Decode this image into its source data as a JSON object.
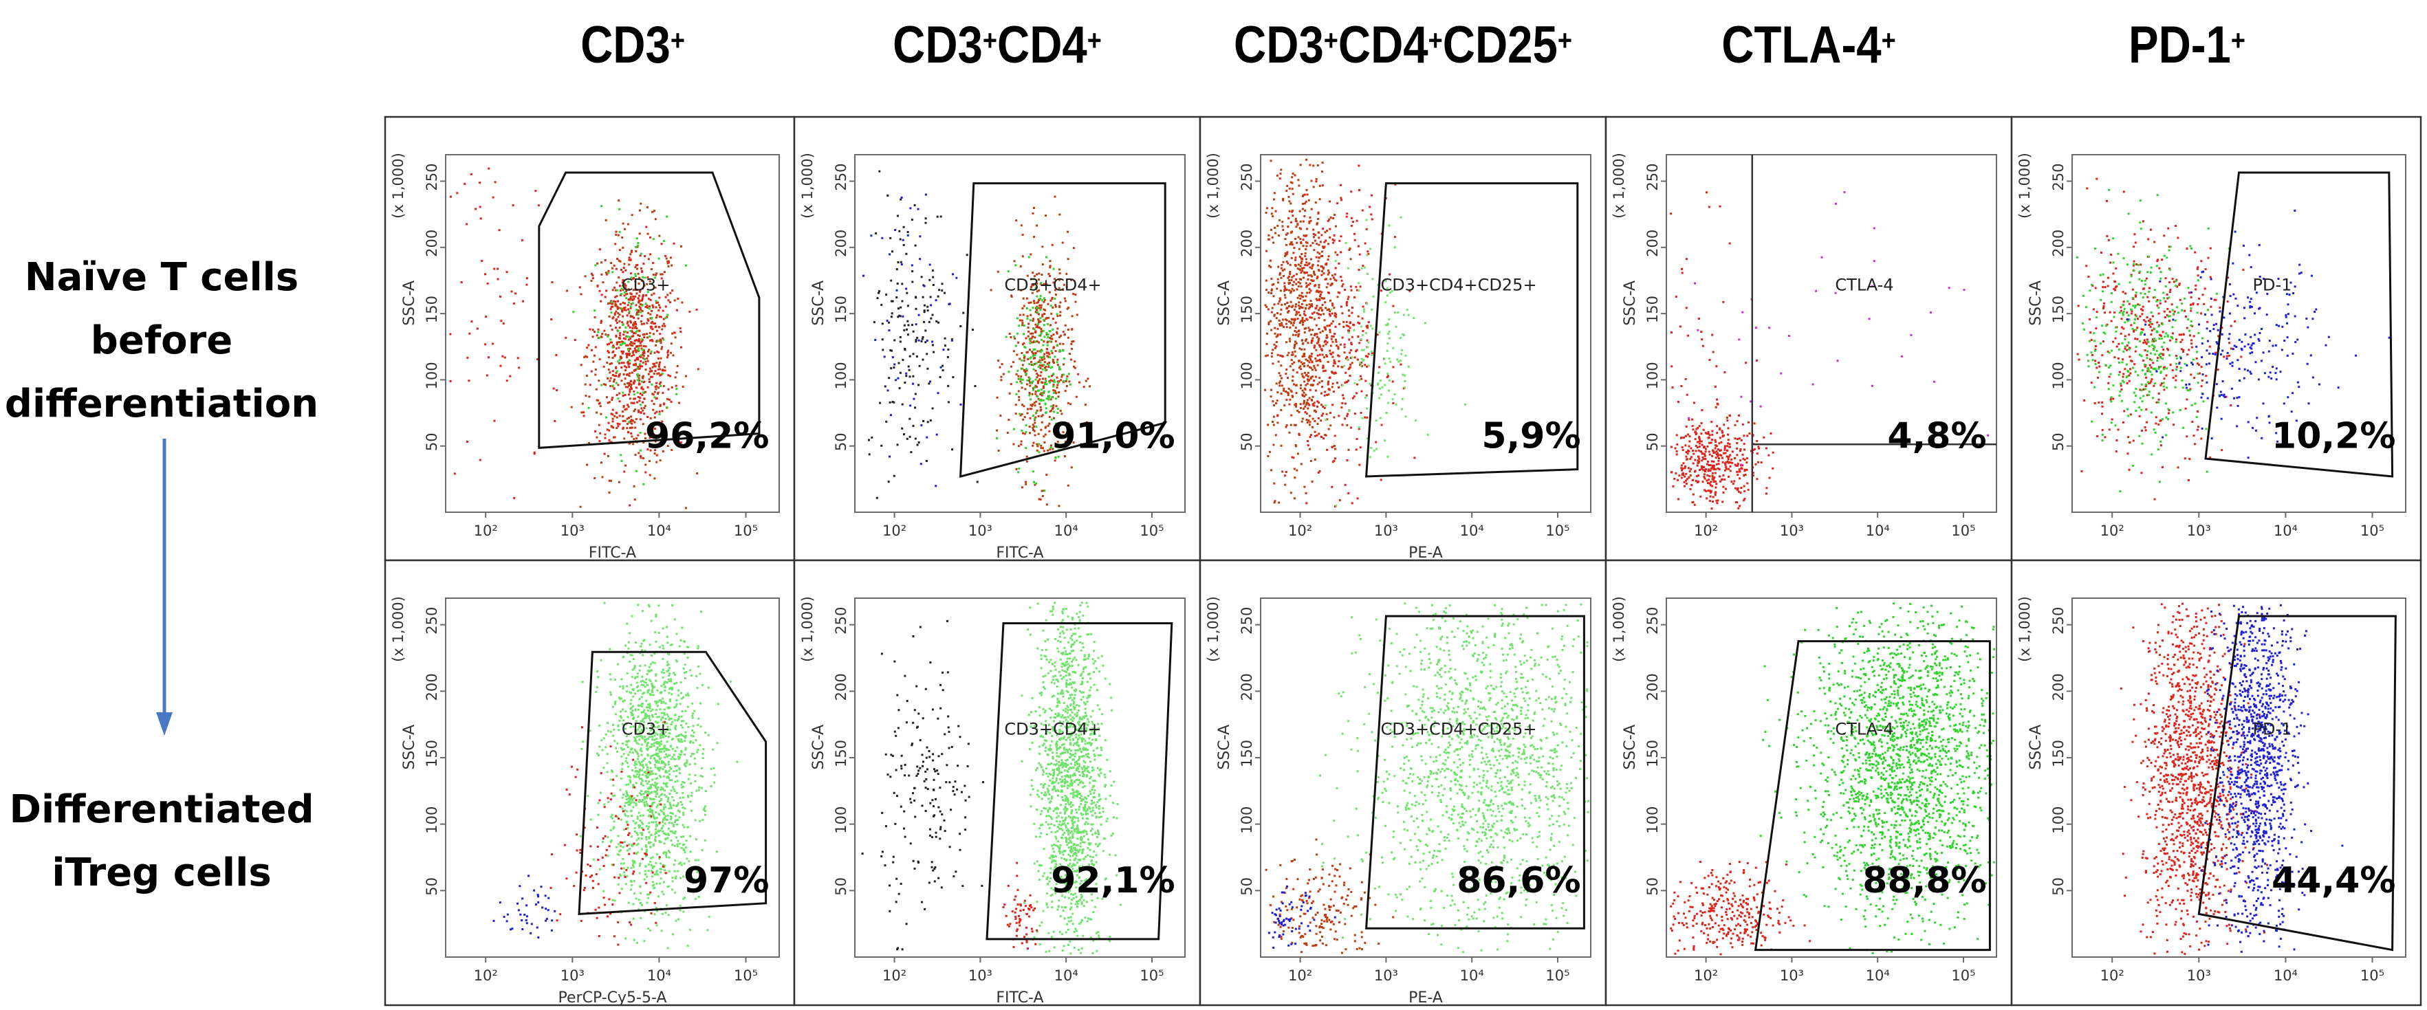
{
  "figure": {
    "column_headers": [
      {
        "base": "CD3",
        "sup": "+"
      },
      {
        "base": "CD3",
        "sup": "+",
        "base2": "CD4",
        "sup2": "+"
      },
      {
        "base": "CD3",
        "sup": "+",
        "base2": "CD4",
        "sup2": "+",
        "base3": "CD25",
        "sup3": "+"
      },
      {
        "base": "CTLA-4",
        "sup": "+"
      },
      {
        "base": "PD-1",
        "sup": "+"
      }
    ],
    "row_labels": [
      [
        "Naïve T cells",
        "before",
        "differentiation"
      ],
      [
        "Differentiated",
        "iTreg cells"
      ]
    ],
    "colors": {
      "red": "#e0231a",
      "dark_red": "#c23a10",
      "green": "#6fe36a",
      "bright_green": "#2ed42a",
      "blue": "#1f1fd8",
      "black": "#222222",
      "magenta": "#cc33cc",
      "arrow": "#4a78c4"
    }
  },
  "chart_data": [
    {
      "type": "scatter",
      "row": "Naïve T cells before differentiation",
      "column": "CD3+",
      "gate_label": "CD3+",
      "percentage": "96,2%",
      "ylabel": "SSC-A",
      "y_unit": "(x 1,000)",
      "xlabel": "FITC-A",
      "x_log_ticks": [
        "10²",
        "10³",
        "10⁴",
        "10⁵"
      ],
      "y_ticks": [
        50,
        100,
        150,
        200,
        250
      ],
      "ylim": [
        0,
        270
      ]
    },
    {
      "type": "scatter",
      "row": "Naïve T cells before differentiation",
      "column": "CD3+CD4+",
      "gate_label": "CD3+CD4+",
      "percentage": "91,0%",
      "ylabel": "SSC-A",
      "y_unit": "(x 1,000)",
      "xlabel": "FITC-A",
      "x_log_ticks": [
        "10²",
        "10³",
        "10⁴",
        "10⁵"
      ],
      "y_ticks": [
        50,
        100,
        150,
        200,
        250
      ],
      "ylim": [
        0,
        270
      ]
    },
    {
      "type": "scatter",
      "row": "Naïve T cells before differentiation",
      "column": "CD3+CD4+CD25+",
      "gate_label": "CD3+CD4+CD25+",
      "percentage": "5,9%",
      "ylabel": "SSC-A",
      "y_unit": "(x 1,000)",
      "xlabel": "PE-A",
      "x_log_ticks": [
        "10²",
        "10³",
        "10⁴",
        "10⁵"
      ],
      "y_ticks": [
        50,
        100,
        150,
        200,
        250
      ],
      "ylim": [
        0,
        270
      ]
    },
    {
      "type": "scatter",
      "row": "Naïve T cells before differentiation",
      "column": "CTLA-4+",
      "gate_label": "CTLA-4",
      "percentage": "4,8%",
      "ylabel": "SSC-A",
      "y_unit": "(x 1,000)",
      "xlabel": "",
      "x_log_ticks": [
        "10²",
        "10³",
        "10⁴",
        "10⁵"
      ],
      "y_ticks": [
        50,
        100,
        150,
        200,
        250
      ],
      "ylim": [
        0,
        270
      ]
    },
    {
      "type": "scatter",
      "row": "Naïve T cells before differentiation",
      "column": "PD-1+",
      "gate_label": "PD-1",
      "percentage": "10,2%",
      "ylabel": "SSC-A",
      "y_unit": "(x 1,000)",
      "xlabel": "",
      "x_log_ticks": [
        "10²",
        "10³",
        "10⁴",
        "10⁵"
      ],
      "y_ticks": [
        50,
        100,
        150,
        200,
        250
      ],
      "ylim": [
        0,
        270
      ]
    },
    {
      "type": "scatter",
      "row": "Differentiated iTreg cells",
      "column": "CD3+",
      "gate_label": "CD3+",
      "percentage": "97%",
      "ylabel": "SSC-A",
      "y_unit": "(x 1,000)",
      "xlabel": "PerCP-Cy5-5-A",
      "x_log_ticks": [
        "10²",
        "10³",
        "10⁴",
        "10⁵"
      ],
      "y_ticks": [
        50,
        100,
        150,
        200,
        250
      ],
      "ylim": [
        0,
        270
      ]
    },
    {
      "type": "scatter",
      "row": "Differentiated iTreg cells",
      "column": "CD3+CD4+",
      "gate_label": "CD3+CD4+",
      "percentage": "92,1%",
      "ylabel": "SSC-A",
      "y_unit": "(x 1,000)",
      "xlabel": "FITC-A",
      "x_log_ticks": [
        "10²",
        "10³",
        "10⁴",
        "10⁵"
      ],
      "y_ticks": [
        50,
        100,
        150,
        200,
        250
      ],
      "ylim": [
        0,
        270
      ]
    },
    {
      "type": "scatter",
      "row": "Differentiated iTreg cells",
      "column": "CD3+CD4+CD25+",
      "gate_label": "CD3+CD4+CD25+",
      "percentage": "86,6%",
      "ylabel": "SSC-A",
      "y_unit": "(x 1,000)",
      "xlabel": "PE-A",
      "x_log_ticks": [
        "10²",
        "10³",
        "10⁴",
        "10⁵"
      ],
      "y_ticks": [
        50,
        100,
        150,
        200,
        250
      ],
      "ylim": [
        0,
        270
      ]
    },
    {
      "type": "scatter",
      "row": "Differentiated iTreg cells",
      "column": "CTLA-4+",
      "gate_label": "CTLA-4",
      "percentage": "88,8%",
      "ylabel": "SSC-A",
      "y_unit": "(x 1,000)",
      "xlabel": "",
      "x_log_ticks": [
        "10²",
        "10³",
        "10⁴",
        "10⁵"
      ],
      "y_ticks": [
        50,
        100,
        150,
        200,
        250
      ],
      "ylim": [
        0,
        270
      ]
    },
    {
      "type": "scatter",
      "row": "Differentiated iTreg cells",
      "column": "PD-1+",
      "gate_label": "PD-1",
      "percentage": "44,4%",
      "ylabel": "SSC-A",
      "y_unit": "(x 1,000)",
      "xlabel": "",
      "x_log_ticks": [
        "10²",
        "10³",
        "10⁴",
        "10⁵"
      ],
      "y_ticks": [
        50,
        100,
        150,
        200,
        250
      ],
      "ylim": [
        0,
        270
      ]
    }
  ]
}
